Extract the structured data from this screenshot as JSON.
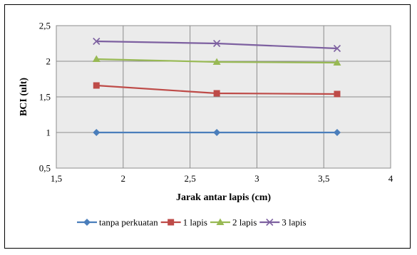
{
  "chart_data": {
    "type": "line",
    "title": "",
    "xlabel": "Jarak antar lapis (cm)",
    "ylabel": "BCI (ult)",
    "xlim": [
      1.5,
      4
    ],
    "ylim": [
      0.5,
      2.5
    ],
    "x_ticks": [
      1.5,
      2,
      2.5,
      3,
      3.5,
      4
    ],
    "x_tick_labels": [
      "1,5",
      "2",
      "2,5",
      "3",
      "3,5",
      "4"
    ],
    "y_ticks": [
      0.5,
      1,
      1.5,
      2,
      2.5
    ],
    "y_tick_labels": [
      "0,5",
      "1",
      "1,5",
      "2",
      "2,5"
    ],
    "grid": true,
    "legend_position": "bottom",
    "plot_background": "#ebebeb",
    "series": [
      {
        "name": "tanpa perkuatan",
        "color": "#4a7ebb",
        "marker": "diamond",
        "x": [
          1.8,
          2.7,
          3.6
        ],
        "y": [
          1.0,
          1.0,
          1.0
        ]
      },
      {
        "name": "1 lapis",
        "color": "#be4b48",
        "marker": "square",
        "x": [
          1.8,
          2.7,
          3.6
        ],
        "y": [
          1.66,
          1.55,
          1.54
        ]
      },
      {
        "name": "2 lapis",
        "color": "#98b954",
        "marker": "triangle",
        "x": [
          1.8,
          2.7,
          3.6
        ],
        "y": [
          2.03,
          1.99,
          1.98
        ]
      },
      {
        "name": "3 lapis",
        "color": "#7d60a0",
        "marker": "x",
        "x": [
          1.8,
          2.7,
          3.6
        ],
        "y": [
          2.28,
          2.25,
          2.18
        ]
      }
    ]
  }
}
